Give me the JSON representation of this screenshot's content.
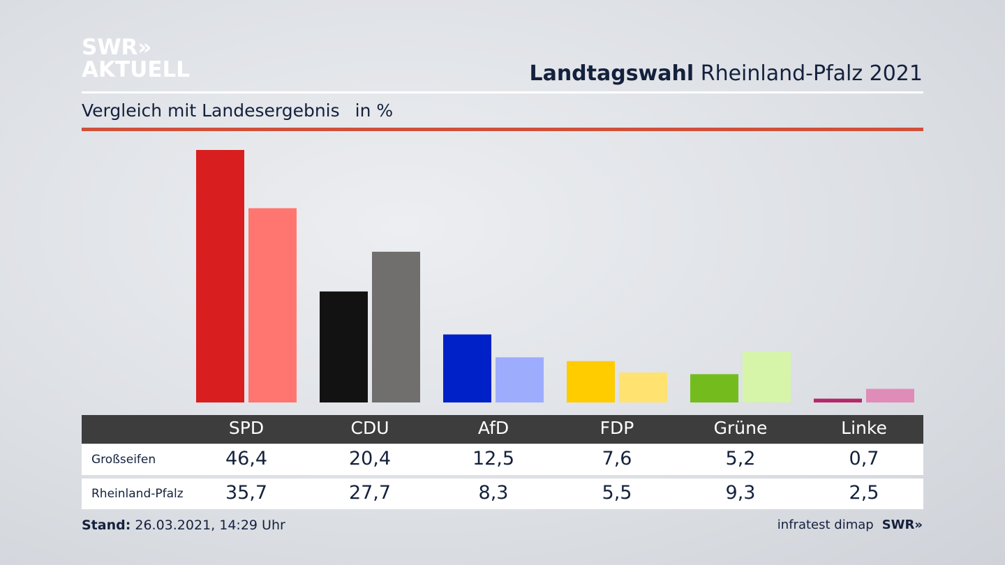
{
  "logo": {
    "line1": "SWR»",
    "line2": "AKTUELL"
  },
  "header": {
    "title_bold": "Landtagswahl",
    "title_rest": "Rheinland-Pfalz 2021"
  },
  "subtitle": {
    "text": "Vergleich mit Landesergebnis",
    "unit": "in %"
  },
  "chart_data": {
    "type": "bar",
    "title": "Landtagswahl Rheinland-Pfalz 2021 – Vergleich mit Landesergebnis",
    "ylabel": "in %",
    "ylim": [
      0,
      46.4
    ],
    "categories": [
      "SPD",
      "CDU",
      "AfD",
      "FDP",
      "Grüne",
      "Linke"
    ],
    "series": [
      {
        "name": "Großseifen",
        "values": [
          46.4,
          20.4,
          12.5,
          7.6,
          5.2,
          0.7
        ],
        "labels": [
          "46,4",
          "20,4",
          "12,5",
          "7,6",
          "5,2",
          "0,7"
        ],
        "colors": [
          "#d81e1e",
          "#121212",
          "#0021c8",
          "#ffcc00",
          "#74bc1e",
          "#b3286a"
        ]
      },
      {
        "name": "Rheinland-Pfalz",
        "values": [
          35.7,
          27.7,
          8.3,
          5.5,
          9.3,
          2.5
        ],
        "labels": [
          "35,7",
          "27,7",
          "8,3",
          "5,5",
          "9,3",
          "2,5"
        ],
        "colors": [
          "#ff7670",
          "#716f6d",
          "#9eacfd",
          "#ffe270",
          "#d6f5a8",
          "#e08cb8"
        ]
      }
    ]
  },
  "footer": {
    "stand_label": "Stand:",
    "stand_value": "26.03.2021, 14:29 Uhr",
    "source": "infratest dimap",
    "brand": "SWR»"
  }
}
